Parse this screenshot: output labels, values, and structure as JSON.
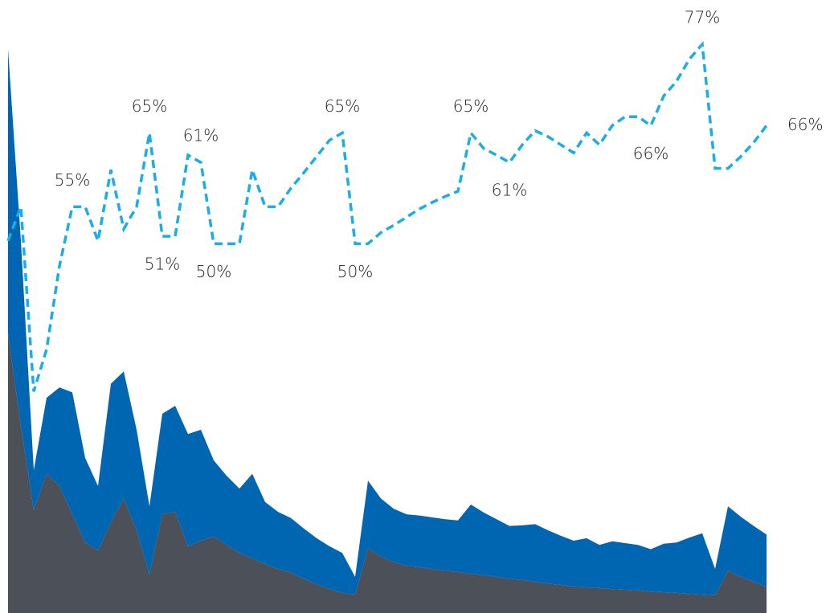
{
  "chart_data": {
    "type": "line",
    "categories": [
      null,
      null,
      null,
      null,
      null,
      null,
      null,
      null,
      null,
      null,
      null,
      null,
      null,
      null,
      null,
      null,
      null,
      null,
      null,
      null,
      null,
      null,
      null,
      null,
      null,
      null,
      null,
      null,
      null,
      null,
      null,
      null,
      null,
      null,
      null,
      null,
      null,
      null,
      null,
      null,
      null,
      null,
      null,
      null,
      null,
      null,
      null,
      null,
      null,
      null,
      null,
      null,
      null,
      null,
      null,
      null,
      null,
      null,
      null,
      null
    ],
    "ylim": [
      0,
      100
    ],
    "y2lim": [
      0,
      83
    ],
    "stacked": true,
    "series": [
      {
        "style": "area",
        "color": "#4b5059",
        "values": [
          45.6,
          30.5,
          16.8,
          22.7,
          20.7,
          16.1,
          11.5,
          10.2,
          14.8,
          18.7,
          13.5,
          6.3,
          16.1,
          16.5,
          10.9,
          11.8,
          12.5,
          11.1,
          9.8,
          8.9,
          8,
          7.2,
          6.6,
          5.6,
          4.7,
          3.9,
          3.3,
          3,
          10.6,
          9.2,
          8.3,
          7.7,
          7.5,
          7.2,
          6.9,
          6.7,
          6.4,
          6.2,
          5.9,
          5.6,
          5.4,
          5.1,
          4.8,
          4.6,
          4.3,
          4.2,
          4.1,
          3.9,
          3.8,
          3.7,
          3.5,
          3.4,
          3.3,
          3.1,
          3,
          2.9,
          6.9,
          5.9,
          5.1,
          4.3
        ]
      },
      {
        "style": "area",
        "color": "#0066b2",
        "values": [
          46.4,
          30.2,
          6.5,
          12.4,
          16.1,
          19.9,
          13.8,
          10.5,
          22.6,
          20.7,
          16.4,
          11.1,
          16.4,
          17.3,
          18.3,
          18.1,
          12.4,
          11.3,
          10.5,
          13.8,
          10.1,
          9.3,
          8.9,
          8.2,
          7.5,
          7,
          6.5,
          2.9,
          11,
          9.5,
          8.7,
          8.4,
          8.4,
          8.4,
          8.4,
          8.4,
          11.3,
          10.2,
          9.4,
          8.6,
          8.9,
          9.4,
          8.7,
          8,
          7.5,
          8,
          7,
          7.8,
          7.6,
          7.4,
          6.9,
          7.9,
          8.2,
          9.2,
          10,
          4.3,
          10.5,
          9.8,
          9.1,
          8.5
        ]
      },
      {
        "style": "line",
        "dashed": true,
        "axis": "y2",
        "color": "#1aaee6",
        "values": [
          50.4,
          55,
          30,
          35.7,
          47,
          55,
          55,
          50.4,
          60,
          52,
          55,
          65,
          51,
          51,
          62,
          61,
          50,
          50,
          50,
          60,
          55,
          55,
          57.5,
          59.6,
          61.8,
          64,
          65,
          50,
          50,
          51.5,
          52.5,
          53.6,
          54.7,
          55.6,
          56.4,
          57.1,
          65,
          62.9,
          62,
          61,
          63.4,
          65.3,
          64.5,
          63.4,
          62.3,
          65,
          63.4,
          66,
          67.2,
          67.2,
          66,
          70,
          72,
          75,
          77,
          60.2,
          60.2,
          61.8,
          63.7,
          66
        ],
        "value_labels": [
          null,
          null,
          null,
          null,
          null,
          "55%",
          null,
          null,
          null,
          null,
          null,
          "65%",
          "51%",
          null,
          null,
          "61%",
          "50%",
          null,
          null,
          null,
          null,
          null,
          null,
          null,
          null,
          null,
          "65%",
          "50%",
          null,
          null,
          null,
          null,
          null,
          null,
          null,
          null,
          "65%",
          null,
          null,
          "61%",
          null,
          null,
          null,
          null,
          null,
          null,
          null,
          null,
          null,
          null,
          "66%",
          null,
          null,
          null,
          "77%",
          null,
          null,
          null,
          null,
          "66%"
        ]
      }
    ]
  }
}
